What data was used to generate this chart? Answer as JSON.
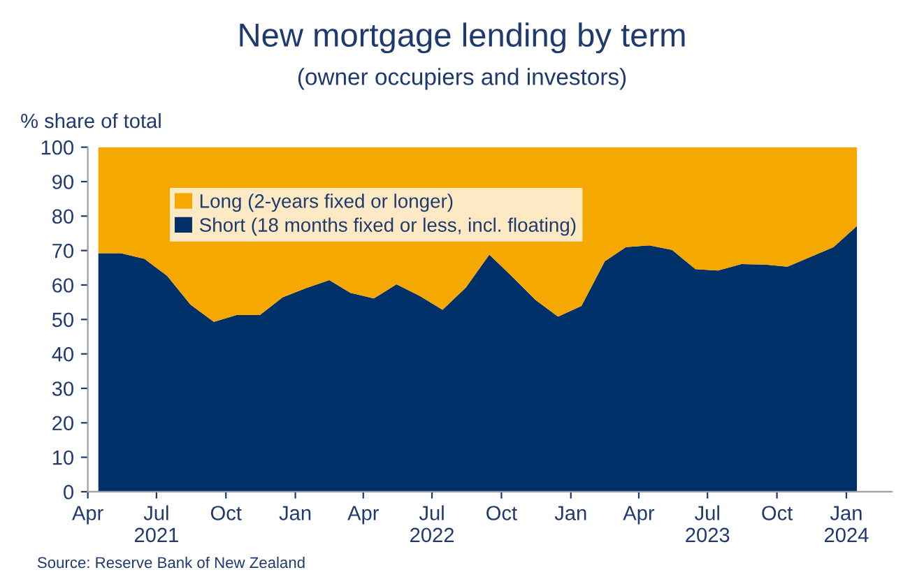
{
  "chart_data": {
    "type": "area",
    "stacked": true,
    "title": "New mortgage lending by term",
    "subtitle": "(owner occupiers and investors)",
    "ylabel": "% share of total",
    "x": [
      "2021-04-15",
      "2021-05-15",
      "2021-06-15",
      "2021-07-15",
      "2021-08-15",
      "2021-09-15",
      "2021-10-15",
      "2021-11-15",
      "2021-12-15",
      "2022-01-15",
      "2022-02-15",
      "2022-03-15",
      "2022-04-15",
      "2022-05-15",
      "2022-06-15",
      "2022-07-15",
      "2022-08-15",
      "2022-09-15",
      "2022-10-15",
      "2022-11-15",
      "2022-12-15",
      "2023-01-15",
      "2023-02-15",
      "2023-03-15",
      "2023-04-15",
      "2023-05-15",
      "2023-06-15",
      "2023-07-15",
      "2023-08-15",
      "2023-09-15",
      "2023-10-15",
      "2023-11-15",
      "2023-12-15",
      "2024-01-15"
    ],
    "series": [
      {
        "name": "Short (18 months fixed or less, incl. floating)",
        "color": "#003068",
        "values": [
          69.2,
          69.2,
          67.6,
          62.7,
          54.3,
          49.3,
          51.3,
          51.3,
          56.4,
          59.1,
          61.4,
          57.7,
          56.1,
          60.2,
          56.8,
          52.8,
          59.3,
          68.8,
          62.5,
          55.7,
          50.8,
          53.9,
          66.9,
          71.0,
          71.5,
          70.2,
          64.6,
          64.2,
          66.1,
          65.9,
          65.3,
          68.2,
          71.0,
          77.1
        ]
      },
      {
        "name": "Long (2-years fixed or longer)",
        "color": "#f5a800",
        "values": [
          30.8,
          30.8,
          32.4,
          37.3,
          45.7,
          50.7,
          48.7,
          48.7,
          43.6,
          40.9,
          38.6,
          42.3,
          43.9,
          39.8,
          43.2,
          47.2,
          40.7,
          31.2,
          37.5,
          44.3,
          49.2,
          46.1,
          33.1,
          29.0,
          28.5,
          29.8,
          35.4,
          35.8,
          33.9,
          34.1,
          34.7,
          31.8,
          29.0,
          22.9
        ]
      }
    ],
    "xlim": [
      "2021-04-01",
      "2024-03-01"
    ],
    "xticks": [
      {
        "value": "2021-04-01",
        "label": "Apr"
      },
      {
        "value": "2021-07-01",
        "label": "Jul\n2021"
      },
      {
        "value": "2021-10-01",
        "label": "Oct"
      },
      {
        "value": "2022-01-01",
        "label": "Jan"
      },
      {
        "value": "2022-04-01",
        "label": "Apr"
      },
      {
        "value": "2022-07-01",
        "label": "Jul\n2022"
      },
      {
        "value": "2022-10-01",
        "label": "Oct"
      },
      {
        "value": "2023-01-01",
        "label": "Jan"
      },
      {
        "value": "2023-04-01",
        "label": "Apr"
      },
      {
        "value": "2023-07-01",
        "label": "Jul\n2023"
      },
      {
        "value": "2023-10-01",
        "label": "Oct"
      },
      {
        "value": "2024-01-01",
        "label": "Jan\n2024"
      }
    ],
    "ylim": [
      0,
      100
    ],
    "yticks": [
      0,
      10,
      20,
      30,
      40,
      50,
      60,
      70,
      80,
      90,
      100
    ],
    "grid": false,
    "legend": "top left",
    "annotations": [
      "Source: Reserve Bank of New Zealand"
    ]
  }
}
